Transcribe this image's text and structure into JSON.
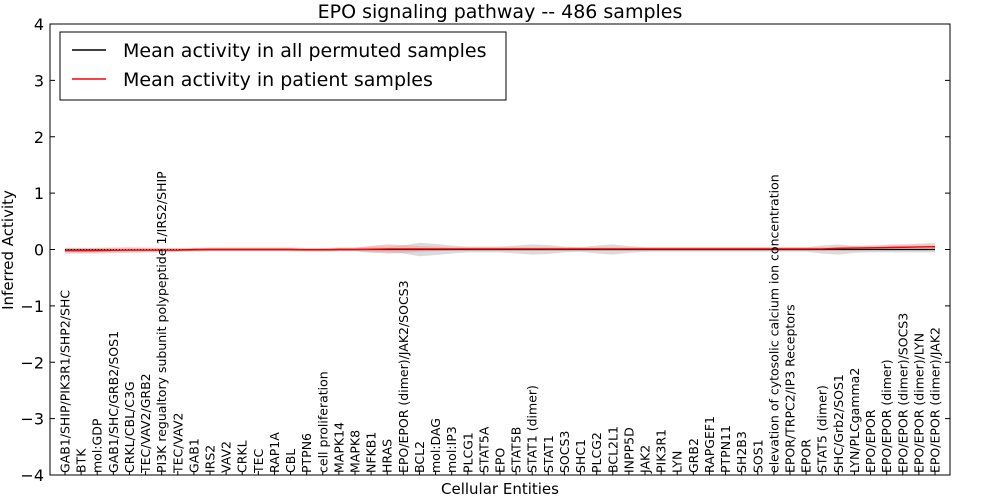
{
  "chart_data": {
    "type": "line",
    "title": "EPO signaling pathway -- 486 samples",
    "xlabel": "Cellular Entities",
    "ylabel": "Inferred Activity",
    "ylim": [
      -4,
      4
    ],
    "yticks": [
      -4,
      -3,
      -2,
      -1,
      0,
      1,
      2,
      3,
      4
    ],
    "ytick_labels": [
      "−4",
      "−3",
      "−2",
      "−1",
      "0",
      "1",
      "2",
      "3",
      "4"
    ],
    "reference_line": 0,
    "legend_position": "top-left",
    "categories": [
      "GAB1/SHIP/PIK3R1/SHP2/SHC",
      "BTK",
      "mol:GDP",
      "GAB1/SHC/GRB2/SOS1",
      "CRKL/CBL/C3G",
      "TEC/VAV2/GRB2",
      "PI3K regualtory subunit polypeptide 1/IRS2/SHIP",
      "TEC/VAV2",
      "GAB1",
      "IRS2",
      "VAV2",
      "CRKL",
      "TEC",
      "RAP1A",
      "CBL",
      "PTPN6",
      "cell proliferation",
      "MAPK14",
      "MAPK8",
      "NFKB1",
      "HRAS",
      "EPO/EPOR (dimer)/JAK2/SOCS3",
      "BCL2",
      "mol:DAG",
      "mol:IP3",
      "PLCG1",
      "STAT5A",
      "EPO",
      "STAT5B",
      "STAT1 (dimer)",
      "STAT1",
      "SOCS3",
      "SHC1",
      "PLCG2",
      "BCL2L1",
      "INPP5D",
      "JAK2",
      "PIK3R1",
      "LYN",
      "GRB2",
      "RAPGEF1",
      "PTPN11",
      "SH2B3",
      "SOS1",
      "elevation of cytosolic calcium ion concentration",
      "EPOR/TRPC2/IP3 Receptors",
      "EPOR",
      "STAT5 (dimer)",
      "SHC/Grb2/SOS1",
      "LYN/PLCgamma2",
      "EPO/EPOR",
      "EPO/EPOR (dimer)",
      "EPO/EPOR (dimer)/SOCS3",
      "EPO/EPOR (dimer)/LYN",
      "EPO/EPOR (dimer)/JAK2"
    ],
    "series": [
      {
        "name": "Mean activity in all permuted samples",
        "color": "#000000",
        "band_color": "#999999",
        "values": [
          -0.01,
          -0.01,
          -0.01,
          -0.01,
          -0.01,
          -0.01,
          -0.01,
          -0.01,
          0,
          0,
          0,
          0,
          0,
          0,
          0,
          -0.005,
          -0.005,
          0,
          0,
          0,
          0,
          0,
          0,
          0,
          0,
          0,
          0,
          0,
          0,
          0,
          0,
          0,
          0,
          0,
          0,
          0,
          0,
          0,
          0,
          0,
          0,
          0,
          0,
          0,
          0,
          0,
          0,
          0,
          0,
          0,
          0,
          0,
          0,
          0,
          0
        ],
        "spread": [
          0.03,
          0.03,
          0.03,
          0.03,
          0.03,
          0.03,
          0.03,
          0.03,
          0.03,
          0.03,
          0.03,
          0.03,
          0.03,
          0.03,
          0.03,
          0.03,
          0.03,
          0.03,
          0.03,
          0.05,
          0.05,
          0.07,
          0.12,
          0.1,
          0.07,
          0.05,
          0.05,
          0.05,
          0.07,
          0.09,
          0.08,
          0.05,
          0.04,
          0.07,
          0.09,
          0.06,
          0.04,
          0.04,
          0.04,
          0.04,
          0.04,
          0.04,
          0.04,
          0.04,
          0.04,
          0.04,
          0.04,
          0.07,
          0.09,
          0.06,
          0.05,
          0.05,
          0.05,
          0.05,
          0.05
        ]
      },
      {
        "name": "Mean activity in patient samples",
        "color": "#ff0000",
        "band_color": "#e8a3a3",
        "values": [
          -0.02,
          -0.02,
          -0.02,
          -0.015,
          -0.01,
          -0.01,
          -0.01,
          -0.01,
          -0.005,
          0,
          0,
          0,
          0,
          0,
          0,
          -0.005,
          -0.005,
          0,
          0,
          0.005,
          0.01,
          0.01,
          0.01,
          0.01,
          0.01,
          0.01,
          0.01,
          0.01,
          0.01,
          0.01,
          0.01,
          0.01,
          0.01,
          0.01,
          0.01,
          0.01,
          0.01,
          0.01,
          0.01,
          0.01,
          0.01,
          0.01,
          0.01,
          0.01,
          0.01,
          0.01,
          0.01,
          0.01,
          0.02,
          0.025,
          0.03,
          0.035,
          0.04,
          0.045,
          0.05
        ],
        "spread": [
          0.05,
          0.05,
          0.05,
          0.05,
          0.05,
          0.04,
          0.04,
          0.03,
          0.03,
          0.03,
          0.03,
          0.03,
          0.03,
          0.03,
          0.03,
          0.03,
          0.03,
          0.03,
          0.03,
          0.06,
          0.08,
          0.07,
          0.05,
          0.04,
          0.03,
          0.03,
          0.03,
          0.03,
          0.03,
          0.03,
          0.03,
          0.03,
          0.03,
          0.03,
          0.03,
          0.03,
          0.03,
          0.03,
          0.03,
          0.03,
          0.03,
          0.03,
          0.03,
          0.03,
          0.03,
          0.03,
          0.03,
          0.03,
          0.03,
          0.04,
          0.04,
          0.05,
          0.05,
          0.06,
          0.06
        ]
      }
    ]
  }
}
